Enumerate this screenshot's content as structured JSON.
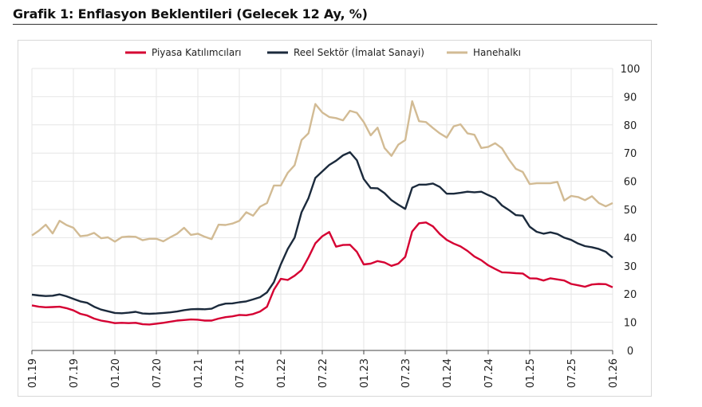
{
  "chart_data": {
    "type": "line",
    "title": "Grafik 1: Enflasyon Beklentileri (Gelecek 12 Ay, %)",
    "xlabel": "",
    "ylabel": "",
    "x_start": "01.19",
    "x_end": "01.26",
    "x_frequency": "monthly",
    "x_tick_labels": [
      "01.19",
      "07.19",
      "01.20",
      "07.20",
      "01.21",
      "07.21",
      "01.22",
      "07.22",
      "01.23",
      "07.23",
      "01.24",
      "07.24",
      "01.25",
      "07.25",
      "01.26"
    ],
    "ylim": [
      0,
      100
    ],
    "y_ticks": [
      0,
      10,
      20,
      30,
      40,
      50,
      60,
      70,
      80,
      90,
      100
    ],
    "y_axis_side": "right",
    "grid": true,
    "legend_placement": "top",
    "series": [
      {
        "name": "Piyasa Katılımcıları",
        "color": "#d50032",
        "values": [
          16,
          15.5,
          15.3,
          15.4,
          15.5,
          15,
          14.2,
          13,
          12.4,
          11.3,
          10.6,
          10.2,
          9.7,
          9.8,
          9.7,
          9.8,
          9.3,
          9.2,
          9.5,
          9.8,
          10.2,
          10.6,
          10.8,
          11,
          10.9,
          10.6,
          10.6,
          11.3,
          11.8,
          12.1,
          12.6,
          12.5,
          12.9,
          13.8,
          15.5,
          21.5,
          25.4,
          25,
          26.5,
          28.5,
          33,
          38,
          40.5,
          42,
          36.8,
          37.4,
          37.5,
          35,
          30.5,
          30.8,
          31.7,
          31.2,
          30,
          30.8,
          33.2,
          42.2,
          45.1,
          45.4,
          44,
          41.3,
          39.2,
          37.9,
          36.9,
          35.3,
          33.3,
          32,
          30.2,
          28.9,
          27.7,
          27.6,
          27.4,
          27.3,
          25.6,
          25.5,
          24.8,
          25.6,
          25.2,
          24.8,
          23.6,
          23.1,
          22.6,
          23.4,
          23.6,
          23.5,
          22.4
        ]
      },
      {
        "name": "Reel Sektör (İmalat Sanayi)",
        "color": "#1b2a3c",
        "values": [
          19.8,
          19.5,
          19.3,
          19.4,
          19.9,
          19.2,
          18.3,
          17.4,
          16.9,
          15.5,
          14.5,
          13.9,
          13.3,
          13.2,
          13.4,
          13.7,
          13.1,
          13,
          13.1,
          13.3,
          13.5,
          13.8,
          14.3,
          14.6,
          14.7,
          14.6,
          14.8,
          16,
          16.6,
          16.7,
          17.1,
          17.4,
          18.1,
          18.9,
          20.6,
          24.2,
          30.5,
          36,
          40,
          49,
          54,
          61.2,
          63.5,
          65.8,
          67.3,
          69.2,
          70.3,
          67.5,
          60.8,
          57.6,
          57.5,
          55.8,
          53.3,
          51.7,
          50.2,
          57.7,
          58.8,
          58.8,
          59.2,
          58,
          55.6,
          55.6,
          55.9,
          56.3,
          56.1,
          56.3,
          55.1,
          54,
          51.4,
          49.8,
          48,
          47.8,
          43.9,
          42.1,
          41.4,
          41.9,
          41.3,
          40,
          39.2,
          37.9,
          37,
          36.6,
          36,
          35,
          32.9
        ]
      },
      {
        "name": "Hanehalkı",
        "color": "#d2bb94",
        "values": [
          40.8,
          42.5,
          44.6,
          41.5,
          46,
          44.5,
          43.5,
          40.5,
          40.8,
          41.7,
          39.8,
          40.1,
          38.6,
          40.2,
          40.4,
          40.3,
          39.1,
          39.6,
          39.6,
          38.7,
          40.1,
          41.4,
          43.5,
          41,
          41.4,
          40.3,
          39.5,
          44.6,
          44.5,
          45,
          46,
          49,
          47.8,
          51,
          52.3,
          58.5,
          58.5,
          63,
          65.7,
          74.6,
          77,
          87.4,
          84.4,
          82.8,
          82.4,
          81.6,
          85,
          84.3,
          81,
          76.3,
          79,
          71.8,
          69,
          73,
          74.6,
          88.4,
          81.3,
          81,
          78.9,
          77,
          75.5,
          79.5,
          80.2,
          77,
          76.5,
          71.8,
          72.2,
          73.5,
          71.7,
          67.7,
          64.4,
          63.3,
          59,
          59.3,
          59.3,
          59.3,
          59.8,
          53.2,
          54.8,
          54.4,
          53.3,
          54.7,
          52.3,
          51.1,
          52.3
        ]
      }
    ]
  }
}
